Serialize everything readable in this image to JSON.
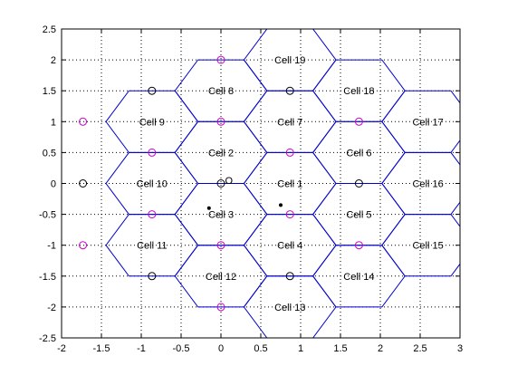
{
  "chart_data": {
    "type": "scatter",
    "xlim": [
      -2,
      3
    ],
    "ylim": [
      -2.5,
      2.5
    ],
    "x_ticks": [
      "-2",
      "-1.5",
      "-1",
      "-0.5",
      "0",
      "0.5",
      "1",
      "1.5",
      "2",
      "2.5",
      "3"
    ],
    "y_ticks": [
      "2.5",
      "2",
      "1.5",
      "1",
      "0.5",
      "0",
      "-0.5",
      "-1",
      "-1.5",
      "-2",
      "-2.5"
    ],
    "grid": true,
    "cells": [
      {
        "name": "Cell 1",
        "x": 0.866,
        "y": 0
      },
      {
        "name": "Cell 2",
        "x": 0,
        "y": 0.5
      },
      {
        "name": "Cell 3",
        "x": 0,
        "y": -0.5
      },
      {
        "name": "Cell 4",
        "x": 0.866,
        "y": -1
      },
      {
        "name": "Cell 5",
        "x": 1.732,
        "y": -0.5
      },
      {
        "name": "Cell 6",
        "x": 1.732,
        "y": 0.5
      },
      {
        "name": "Cell 7",
        "x": 0.866,
        "y": 1
      },
      {
        "name": "Cell 8",
        "x": 0,
        "y": 1.5
      },
      {
        "name": "Cell 9",
        "x": -0.866,
        "y": 1
      },
      {
        "name": "Cell 10",
        "x": -0.866,
        "y": 0
      },
      {
        "name": "Cell 11",
        "x": -0.866,
        "y": -1
      },
      {
        "name": "Cell 12",
        "x": 0,
        "y": -1.5
      },
      {
        "name": "Cell 13",
        "x": 0.866,
        "y": -2
      },
      {
        "name": "Cell 14",
        "x": 1.732,
        "y": -1.5
      },
      {
        "name": "Cell 15",
        "x": 2.598,
        "y": -1
      },
      {
        "name": "Cell 16",
        "x": 2.598,
        "y": 0
      },
      {
        "name": "Cell 17",
        "x": 2.598,
        "y": 1
      },
      {
        "name": "Cell 18",
        "x": 1.732,
        "y": 1.5
      },
      {
        "name": "Cell 19",
        "x": 0.866,
        "y": 2
      }
    ],
    "hex_radius": 0.577,
    "black_circles": [
      [
        0,
        0
      ],
      [
        0.866,
        1.5
      ],
      [
        -0.866,
        1.5
      ],
      [
        -1.732,
        0
      ],
      [
        -0.866,
        -1.5
      ],
      [
        0.866,
        -1.5
      ],
      [
        1.732,
        0
      ]
    ],
    "magenta_circles": [
      [
        0,
        2
      ],
      [
        -1.732,
        1
      ],
      [
        -1.732,
        -1
      ],
      [
        0,
        -2
      ],
      [
        0,
        1
      ],
      [
        0.866,
        0.5
      ],
      [
        0.866,
        -0.5
      ],
      [
        0,
        -1
      ],
      [
        -0.866,
        -0.5
      ],
      [
        -0.866,
        0.5
      ],
      [
        1.732,
        1
      ],
      [
        1.732,
        -1
      ]
    ],
    "points": [
      [
        -0.15,
        -0.4
      ],
      [
        0.75,
        -0.35
      ]
    ],
    "annotation": {
      "text": "O",
      "x": 0.1,
      "y": 0.05
    },
    "colors": {
      "hexagon": "#0000cc",
      "magenta_marker": "#cc00cc",
      "black_marker": "#000000",
      "grid": "#000000"
    }
  }
}
